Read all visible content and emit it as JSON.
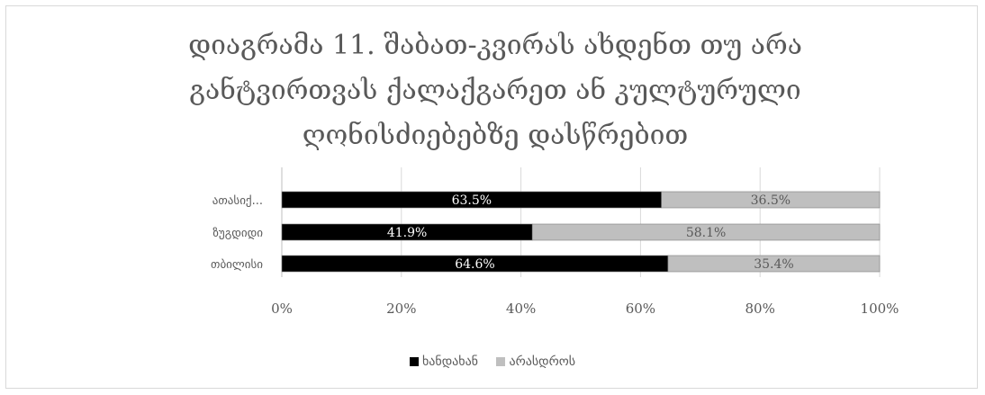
{
  "chart_data": {
    "type": "bar",
    "orientation": "horizontal",
    "stacked": "percent",
    "title": "დიაგრამა 11. შაბათ-კვირას ახდენთ თუ არა განტვირთვას ქალაქგარეთ ან კულტურული ღონისძიებებზე დასწრებით",
    "title_lines": [
      "დიაგრამა 11. შაბათ-კვირას ახდენთ თუ არა",
      "განტვირთვას ქალაქგარეთ ან კულტურული",
      "ღონისძიებებზე დასწრებით"
    ],
    "categories": [
      "თბილისი",
      "ზუგდიდი",
      "ათასიქ..."
    ],
    "series": [
      {
        "name": "ხანდახან",
        "color": "#000000",
        "values": [
          64.6,
          41.9,
          63.5
        ],
        "labels": [
          "64.6%",
          "41.9%",
          "63.5%"
        ]
      },
      {
        "name": "არასდროს",
        "color": "#bfbfbf",
        "values": [
          35.4,
          58.1,
          36.5
        ],
        "labels": [
          "35.4%",
          "58.1%",
          "36.5%"
        ]
      }
    ],
    "x_ticks": [
      "0%",
      "20%",
      "40%",
      "60%",
      "80%",
      "100%"
    ],
    "xlim": [
      0,
      100
    ],
    "grid": true,
    "legend_position": "bottom"
  }
}
